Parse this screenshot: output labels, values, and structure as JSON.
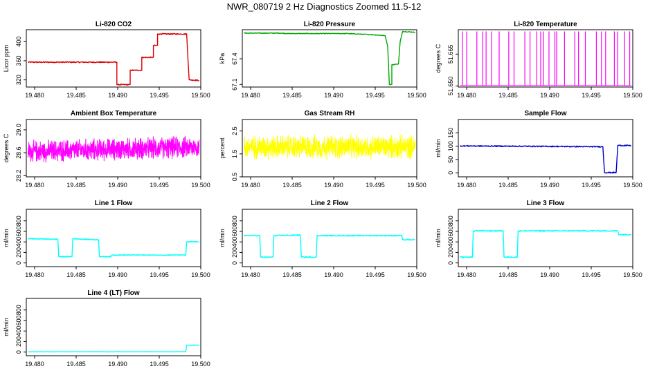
{
  "title": "NWR_080719  2 Hz Diagnostics Zoomed 11.5-12",
  "chart_data": [
    {
      "id": "co2",
      "type": "line",
      "title": "Li-820 CO2",
      "ylabel": "Licor ppm",
      "color": "#dd0000",
      "noise": 1.2,
      "xlim": [
        19.479,
        19.5
      ],
      "xticks": [
        "19.480",
        "19.485",
        "19.490",
        "19.495",
        "19.500"
      ],
      "ylim": [
        305,
        425
      ],
      "yticks": [
        "320",
        "360",
        "400"
      ],
      "points": [
        [
          19.4792,
          357
        ],
        [
          19.4899,
          357
        ],
        [
          19.4899,
          310
        ],
        [
          19.4915,
          310
        ],
        [
          19.4915,
          340
        ],
        [
          19.4929,
          340
        ],
        [
          19.4929,
          367
        ],
        [
          19.4943,
          367
        ],
        [
          19.4943,
          392
        ],
        [
          19.4948,
          392
        ],
        [
          19.4948,
          416
        ],
        [
          19.4983,
          416
        ],
        [
          19.4986,
          320
        ],
        [
          19.4998,
          319
        ]
      ]
    },
    {
      "id": "pressure",
      "type": "line",
      "title": "Li-820 Pressure",
      "ylabel": "kPa",
      "color": "#00aa00",
      "noise": 0.004,
      "xlim": [
        19.479,
        19.5
      ],
      "xticks": [
        "19.480",
        "19.485",
        "19.490",
        "19.495",
        "19.500"
      ],
      "ylim": [
        67.07,
        67.74
      ],
      "yticks": [
        "67.1",
        "67.4"
      ],
      "points": [
        [
          19.4792,
          67.7
        ],
        [
          19.4836,
          67.7
        ],
        [
          19.4845,
          67.695
        ],
        [
          19.4917,
          67.695
        ],
        [
          19.4949,
          67.68
        ],
        [
          19.4962,
          67.67
        ],
        [
          19.4965,
          67.55
        ],
        [
          19.4967,
          67.1
        ],
        [
          19.497,
          67.1
        ],
        [
          19.497,
          67.33
        ],
        [
          19.4978,
          67.34
        ],
        [
          19.498,
          67.6
        ],
        [
          19.4983,
          67.72
        ],
        [
          19.4998,
          67.71
        ]
      ]
    },
    {
      "id": "temperature",
      "type": "line",
      "title": "Li-820 Temperature",
      "ylabel": "degrees C",
      "color": "#ff00ff",
      "noise": 0,
      "spikes": true,
      "spike_base": 51.6502,
      "spike_top": 51.6757,
      "xlim": [
        19.479,
        19.5
      ],
      "xticks": [
        "19.480",
        "19.485",
        "19.490",
        "19.495",
        "19.500"
      ],
      "ylim": [
        51.6495,
        51.6765
      ],
      "yticks": [
        "51.650",
        "51.665"
      ],
      "points": [
        [
          19.4792,
          51.6502
        ],
        [
          19.4998,
          51.6502
        ]
      ]
    },
    {
      "id": "ambient",
      "type": "line",
      "title": "Ambient Box Temperature",
      "ylabel": "degrees C",
      "color": "#ff00ff",
      "noise": 0.11,
      "dense": true,
      "xlim": [
        19.479,
        19.5
      ],
      "xticks": [
        "19.480",
        "19.485",
        "19.490",
        "19.495",
        "19.500"
      ],
      "ylim": [
        28.18,
        29.18
      ],
      "yticks": [
        "28.2",
        "28.6",
        "29.0"
      ],
      "points": [
        [
          19.4792,
          28.62
        ],
        [
          19.4998,
          28.7
        ]
      ]
    },
    {
      "id": "rh",
      "type": "line",
      "title": "Gas Stream RH",
      "ylabel": "percent",
      "color": "#ffff00",
      "noise": 0.3,
      "dense": true,
      "xlim": [
        19.479,
        19.5
      ],
      "xticks": [
        "19.480",
        "19.485",
        "19.490",
        "19.495",
        "19.500"
      ],
      "ylim": [
        0.5,
        3.0
      ],
      "yticks": [
        "0.5",
        "1.5",
        "2.5"
      ],
      "points": [
        [
          19.4792,
          1.8
        ],
        [
          19.4998,
          1.8
        ]
      ]
    },
    {
      "id": "sample",
      "type": "line",
      "title": "Sample Flow",
      "ylabel": "ml/min",
      "color": "#0000cc",
      "noise": 2,
      "xlim": [
        19.479,
        19.5
      ],
      "xticks": [
        "19.480",
        "19.485",
        "19.490",
        "19.495",
        "19.500"
      ],
      "ylim": [
        -15,
        200
      ],
      "yticks": [
        "0",
        "50",
        "100",
        "150"
      ],
      "points": [
        [
          19.4792,
          101
        ],
        [
          19.4962,
          98
        ],
        [
          19.4964,
          98
        ],
        [
          19.4966,
          1
        ],
        [
          19.498,
          1
        ],
        [
          19.4982,
          103
        ],
        [
          19.4998,
          102
        ]
      ]
    },
    {
      "id": "line1",
      "type": "line",
      "title": "Line 1 Flow",
      "ylabel": "ml/min",
      "color": "#00ffff",
      "noise": 8,
      "xlim": [
        19.479,
        19.5
      ],
      "xticks": [
        "19.480",
        "19.485",
        "19.490",
        "19.495",
        "19.500"
      ],
      "ylim": [
        -70,
        1020
      ],
      "yticks": [
        "0",
        "200",
        "400",
        "600",
        "800"
      ],
      "points": [
        [
          19.4792,
          460
        ],
        [
          19.4828,
          450
        ],
        [
          19.4829,
          120
        ],
        [
          19.4845,
          120
        ],
        [
          19.4846,
          460
        ],
        [
          19.4877,
          440
        ],
        [
          19.4878,
          120
        ],
        [
          19.4892,
          120
        ],
        [
          19.4893,
          150
        ],
        [
          19.4982,
          150
        ],
        [
          19.4983,
          400
        ],
        [
          19.4998,
          405
        ]
      ]
    },
    {
      "id": "line2",
      "type": "line",
      "title": "Line 2 Flow",
      "ylabel": "ml/min",
      "color": "#00ffff",
      "noise": 10,
      "xlim": [
        19.479,
        19.5
      ],
      "xticks": [
        "19.480",
        "19.485",
        "19.490",
        "19.495",
        "19.500"
      ],
      "ylim": [
        -70,
        1020
      ],
      "yticks": [
        "0",
        "200",
        "400",
        "600",
        "800"
      ],
      "points": [
        [
          19.4792,
          520
        ],
        [
          19.4811,
          520
        ],
        [
          19.4812,
          110
        ],
        [
          19.4827,
          110
        ],
        [
          19.4828,
          520
        ],
        [
          19.486,
          530
        ],
        [
          19.4861,
          110
        ],
        [
          19.4879,
          110
        ],
        [
          19.488,
          520
        ],
        [
          19.4982,
          520
        ],
        [
          19.4983,
          440
        ],
        [
          19.4998,
          440
        ]
      ]
    },
    {
      "id": "line3",
      "type": "line",
      "title": "Line 3 Flow",
      "ylabel": "ml/min",
      "color": "#00ffff",
      "noise": 10,
      "xlim": [
        19.479,
        19.5
      ],
      "xticks": [
        "19.480",
        "19.485",
        "19.490",
        "19.495",
        "19.500"
      ],
      "ylim": [
        -70,
        1020
      ],
      "yticks": [
        "0",
        "200",
        "400",
        "600",
        "800"
      ],
      "points": [
        [
          19.4792,
          110
        ],
        [
          19.4807,
          110
        ],
        [
          19.4808,
          610
        ],
        [
          19.4844,
          610
        ],
        [
          19.4845,
          110
        ],
        [
          19.4861,
          110
        ],
        [
          19.4862,
          610
        ],
        [
          19.4982,
          610
        ],
        [
          19.4983,
          540
        ],
        [
          19.4998,
          540
        ]
      ]
    },
    {
      "id": "line4",
      "type": "line",
      "title": "Line 4 (LT) Flow",
      "ylabel": "ml/min",
      "color": "#00ffff",
      "noise": 2,
      "xlim": [
        19.479,
        19.5
      ],
      "xticks": [
        "19.480",
        "19.485",
        "19.490",
        "19.495",
        "19.500"
      ],
      "ylim": [
        -70,
        1020
      ],
      "yticks": [
        "0",
        "200",
        "400",
        "600",
        "800"
      ],
      "points": [
        [
          19.4792,
          5
        ],
        [
          19.4982,
          5
        ],
        [
          19.4983,
          130
        ],
        [
          19.4998,
          130
        ]
      ]
    }
  ]
}
